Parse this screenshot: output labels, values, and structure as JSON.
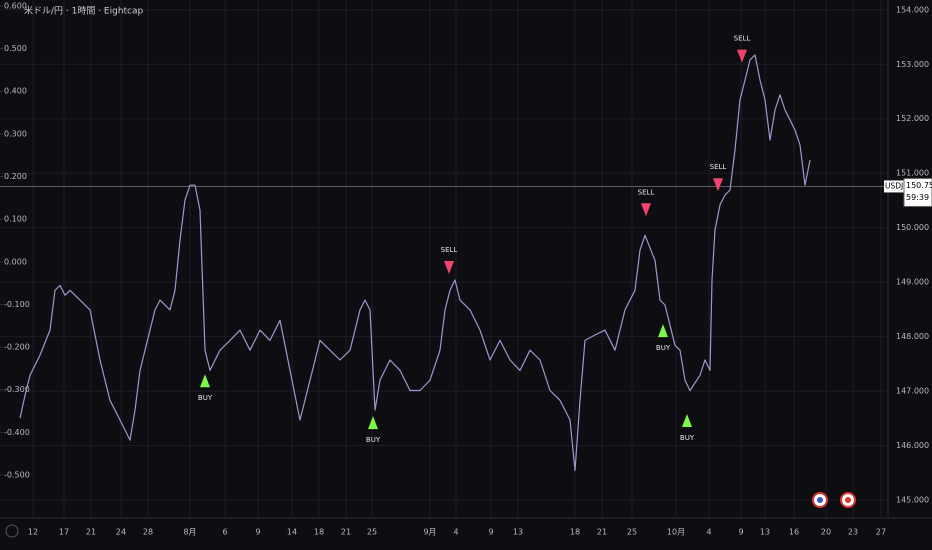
{
  "chart_data": {
    "type": "line",
    "title": "米ドル/円 · 1時間 · Eightcap",
    "symbol": "USDJPY",
    "last_price": 150.757,
    "countdown": "59:39",
    "xlim": [
      0,
      860
    ],
    "ylim": [
      144.67,
      154.18
    ],
    "y2lim": [
      -0.601,
      0.614
    ],
    "grid": true,
    "xticks": [
      {
        "value": 13,
        "label": "12"
      },
      {
        "value": 44,
        "label": "17"
      },
      {
        "value": 71,
        "label": "21"
      },
      {
        "value": 101,
        "label": "24"
      },
      {
        "value": 128,
        "label": "28"
      },
      {
        "value": 170,
        "label": "8月"
      },
      {
        "value": 205,
        "label": "6"
      },
      {
        "value": 238,
        "label": "9"
      },
      {
        "value": 272,
        "label": "14"
      },
      {
        "value": 299,
        "label": "18"
      },
      {
        "value": 326,
        "label": "21"
      },
      {
        "value": 352,
        "label": "25"
      },
      {
        "value": 410,
        "label": "9月"
      },
      {
        "value": 436,
        "label": "4"
      },
      {
        "value": 471,
        "label": "9"
      },
      {
        "value": 498,
        "label": "13"
      },
      {
        "value": 555,
        "label": "18"
      },
      {
        "value": 582,
        "label": "21"
      },
      {
        "value": 612,
        "label": "25"
      },
      {
        "value": 656,
        "label": "10月"
      },
      {
        "value": 689,
        "label": "4"
      },
      {
        "value": 721,
        "label": "9"
      },
      {
        "value": 745,
        "label": "13"
      },
      {
        "value": 774,
        "label": "16"
      },
      {
        "value": 806,
        "label": "20"
      },
      {
        "value": 833,
        "label": "23"
      },
      {
        "value": 861,
        "label": "27"
      }
    ],
    "yticks": [
      {
        "value": 145,
        "label": "145.000"
      },
      {
        "value": 146,
        "label": "146.000"
      },
      {
        "value": 147,
        "label": "147.000"
      },
      {
        "value": 148,
        "label": "148.000"
      },
      {
        "value": 149,
        "label": "149.000"
      },
      {
        "value": 150,
        "label": "150.000"
      },
      {
        "value": 151,
        "label": "151.000"
      },
      {
        "value": 152,
        "label": "152.000"
      },
      {
        "value": 153,
        "label": "153.000"
      },
      {
        "value": 154,
        "label": "154.000"
      }
    ],
    "y2ticks": [
      {
        "value": -0.5,
        "label": "-0.500"
      },
      {
        "value": -0.4,
        "label": "-0.400"
      },
      {
        "value": -0.3,
        "label": "-0.300"
      },
      {
        "value": -0.2,
        "label": "-0.200"
      },
      {
        "value": -0.1,
        "label": "-0.100"
      },
      {
        "value": 0,
        "label": "0.000"
      },
      {
        "value": 0.1,
        "label": "0.100"
      },
      {
        "value": 0.2,
        "label": "0.200"
      },
      {
        "value": 0.3,
        "label": "0.300"
      },
      {
        "value": 0.4,
        "label": "0.400"
      },
      {
        "value": 0.5,
        "label": "0.500"
      },
      {
        "value": 0.6,
        "label": "0.600"
      }
    ],
    "x": [
      0,
      5,
      10,
      20,
      30,
      35,
      40,
      45,
      50,
      60,
      70,
      80,
      90,
      100,
      110,
      115,
      120,
      130,
      135,
      140,
      150,
      155,
      160,
      165,
      170,
      175,
      180,
      185,
      190,
      200,
      210,
      220,
      230,
      240,
      250,
      260,
      270,
      280,
      290,
      300,
      310,
      320,
      330,
      335,
      340,
      345,
      350,
      355,
      360,
      370,
      380,
      390,
      400,
      410,
      420,
      425,
      430,
      435,
      440,
      450,
      460,
      470,
      480,
      490,
      500,
      510,
      520,
      530,
      540,
      550,
      555,
      560,
      565,
      575,
      585,
      595,
      605,
      615,
      620,
      625,
      635,
      640,
      645,
      650,
      655,
      660,
      665,
      670,
      680,
      685,
      690,
      692,
      695,
      700,
      705,
      710,
      715,
      720,
      725,
      730,
      735,
      740,
      745,
      750,
      755,
      760,
      765,
      770,
      775,
      780,
      785,
      790
    ],
    "series": [
      {
        "color": "#9c99cc",
        "values": [
          146.5,
          146.92,
          147.29,
          147.66,
          148.12,
          148.85,
          148.94,
          148.76,
          148.85,
          148.67,
          148.49,
          147.57,
          146.83,
          146.47,
          146.1,
          146.65,
          147.38,
          148.12,
          148.49,
          148.67,
          148.49,
          148.85,
          149.77,
          150.51,
          150.78,
          150.78,
          150.32,
          147.75,
          147.38,
          147.75,
          147.93,
          148.12,
          147.75,
          148.12,
          147.93,
          148.3,
          147.38,
          146.47,
          147.2,
          147.93,
          147.75,
          147.57,
          147.75,
          148.12,
          148.49,
          148.67,
          148.49,
          146.65,
          147.2,
          147.57,
          147.38,
          147.01,
          147.01,
          147.2,
          147.75,
          148.49,
          148.85,
          149.04,
          148.67,
          148.49,
          148.12,
          147.57,
          147.93,
          147.57,
          147.38,
          147.75,
          147.57,
          147.01,
          146.83,
          146.47,
          145.54,
          146.83,
          147.93,
          148.03,
          148.12,
          147.75,
          148.49,
          148.85,
          149.59,
          149.86,
          149.4,
          148.67,
          148.58,
          148.21,
          147.84,
          147.75,
          147.2,
          147.01,
          147.29,
          147.57,
          147.38,
          149.04,
          149.96,
          150.42,
          150.6,
          150.69,
          151.43,
          152.35,
          152.71,
          153.08,
          153.17,
          152.71,
          152.35,
          151.61,
          152.16,
          152.44,
          152.16,
          151.98,
          151.79,
          151.52,
          150.78,
          151.24
        ]
      }
    ],
    "signals": [
      {
        "label": "BUY",
        "x": 185,
        "price": 147.2
      },
      {
        "label": "BUY",
        "x": 353,
        "price": 146.43
      },
      {
        "label": "SELL",
        "x": 429,
        "price": 149.26
      },
      {
        "label": "SELL",
        "x": 626,
        "price": 150.32
      },
      {
        "label": "BUY",
        "x": 643,
        "price": 148.12
      },
      {
        "label": "BUY",
        "x": 667,
        "price": 146.47
      },
      {
        "label": "SELL",
        "x": 698,
        "price": 150.78
      },
      {
        "label": "SELL",
        "x": 722,
        "price": 153.14
      }
    ],
    "buy_color": "#7cf74a",
    "sell_color": "#f2436e"
  }
}
